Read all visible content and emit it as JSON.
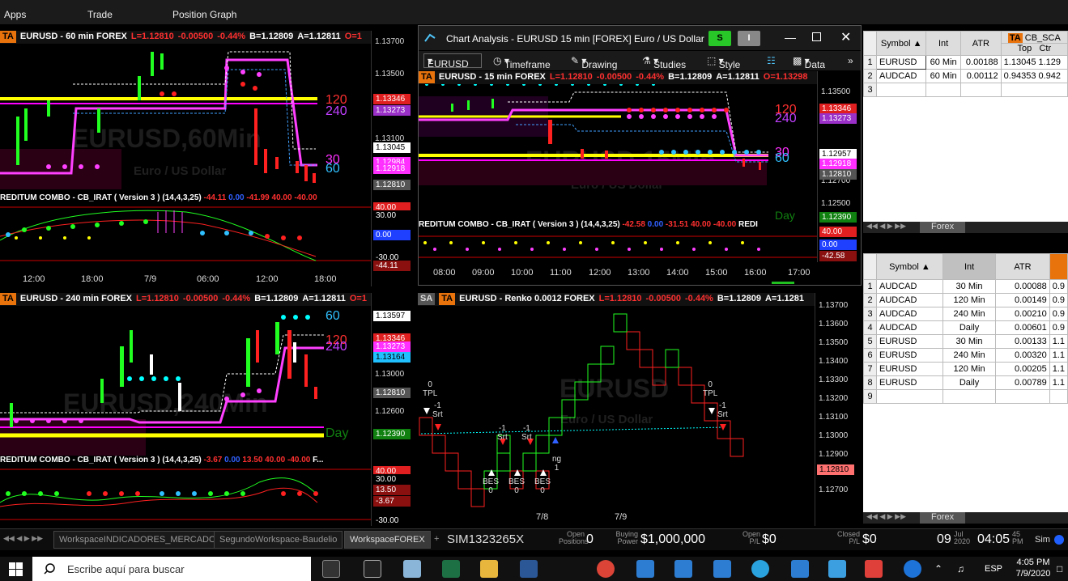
{
  "menu": {
    "apps": "Apps",
    "trade": "Trade",
    "position_graph": "Position Graph"
  },
  "p60": {
    "ta": "TA",
    "symbol": "EURUSD - 60 min  FOREX",
    "last": "L=1.12810",
    "chg": "-0.00500",
    "pct": "-0.44%",
    "bid": "B=1.12809",
    "ask": "A=1.12811",
    "open": "O=1",
    "watermark": "EURUSD,60Min",
    "watermark_sub": "Euro / US Dollar",
    "y_labels": [
      "1.13700",
      "1.13500",
      "1.13100"
    ],
    "tags": [
      {
        "v": "1.13346",
        "bg": "#e02020",
        "fg": "#fff"
      },
      {
        "v": "1.13273",
        "bg": "#9a30c8",
        "fg": "#fff"
      },
      {
        "v": "1.13045",
        "bg": "#fff",
        "fg": "#000"
      },
      {
        "v": "1.12984",
        "bg": "#ff30ff",
        "fg": "#fff"
      },
      {
        "v": "1.12918",
        "bg": "#ff30ff",
        "fg": "#fff"
      },
      {
        "v": "1.12810",
        "bg": "#555",
        "fg": "#fff"
      }
    ],
    "level_120": "120",
    "level_240": "240",
    "level_30": "30",
    "level_60": "60",
    "combo_title": "REDITUM COMBO - CB_IRAT ( Version 3 ) (14,4,3,25)",
    "combo_v1": "-44.11",
    "combo_v2": "0.00",
    "combo_v3": "-41.99",
    "combo_v4": "40.00",
    "combo_v5": "-40.00",
    "combo_tags": [
      {
        "v": "40.00",
        "bg": "#e02020"
      },
      {
        "v": "30.00",
        "bg": "#000"
      },
      {
        "v": "0.00",
        "bg": "#2040ff"
      },
      {
        "v": "-30.00",
        "bg": "#000"
      },
      {
        "v": "-44.11",
        "bg": "#8a1010"
      }
    ],
    "x_labels": [
      "12:00",
      "18:00",
      "7/9",
      "06:00",
      "12:00",
      "18:00"
    ]
  },
  "ca": {
    "title": "Chart Analysis - EURUSD 15 min [FOREX] Euro / US Dollar",
    "s_btn": "S",
    "i_btn": "I",
    "symbol_box": "EURUSD",
    "timeframe": "Timeframe",
    "drawing": "Drawing",
    "studies": "Studies",
    "style": "Style",
    "data": "Data",
    "ta": "TA",
    "symbol": "EURUSD - 15 min  FOREX",
    "last": "L=1.12810",
    "chg": "-0.00500",
    "pct": "-0.44%",
    "bid": "B=1.12809",
    "ask": "A=1.12811",
    "open": "O=1.13298",
    "watermark": "EURUSD,15Min",
    "watermark_sub": "Euro / US Dollar",
    "y_labels": [
      "1.13500",
      "1.12700",
      "1.12500"
    ],
    "tags": [
      {
        "v": "1.13346",
        "bg": "#e02020",
        "fg": "#fff"
      },
      {
        "v": "1.13273",
        "bg": "#9a30c8",
        "fg": "#fff"
      },
      {
        "v": "1.12957",
        "bg": "#fff",
        "fg": "#000"
      },
      {
        "v": "1.12918",
        "bg": "#ff30ff",
        "fg": "#fff"
      },
      {
        "v": "1.12810",
        "bg": "#555",
        "fg": "#fff"
      },
      {
        "v": "1.12390",
        "bg": "#108010",
        "fg": "#fff"
      }
    ],
    "level_120": "120",
    "level_240": "240",
    "level_30": "30",
    "level_60": "60",
    "level_day": "Day",
    "combo_title": "REDITUM COMBO - CB_IRAT ( Version 3 ) (14,4,3,25)",
    "combo_v1": "-42.58",
    "combo_v2": "0.00",
    "combo_v3": "-31.51",
    "combo_v4": "40.00",
    "combo_v5": "-40.00",
    "combo_tail": "REDI",
    "combo_tags": [
      {
        "v": "40.00",
        "bg": "#e02020"
      },
      {
        "v": "0.00",
        "bg": "#2040ff"
      },
      {
        "v": "-42.58",
        "bg": "#8a1010"
      }
    ],
    "x_labels": [
      "08:00",
      "09:00",
      "10:00",
      "11:00",
      "12:00",
      "13:00",
      "14:00",
      "15:00",
      "16:00",
      "17:00"
    ]
  },
  "p240": {
    "ta": "TA",
    "symbol": "EURUSD - 240 min  FOREX",
    "last": "L=1.12810",
    "chg": "-0.00500",
    "pct": "-0.44%",
    "bid": "B=1.12809",
    "ask": "A=1.12811",
    "open": "O=1",
    "watermark": "EURUSD,240Min",
    "y_labels": [
      "1.13000",
      "1.12600"
    ],
    "tags": [
      {
        "v": "1.13597",
        "bg": "#fff",
        "fg": "#000"
      },
      {
        "v": "1.13346",
        "bg": "#e02020",
        "fg": "#fff"
      },
      {
        "v": "1.13273",
        "bg": "#ff30ff",
        "fg": "#fff"
      },
      {
        "v": "1.13164",
        "bg": "#20c0ff",
        "fg": "#000"
      },
      {
        "v": "1.12810",
        "bg": "#555",
        "fg": "#fff"
      },
      {
        "v": "1.12390",
        "bg": "#108010",
        "fg": "#fff"
      }
    ],
    "level_60": "60",
    "level_120": "120",
    "level_240": "240",
    "level_day": "Day",
    "combo_title": "REDITUM COMBO - CB_IRAT ( Version 3 ) (14,4,3,25)",
    "combo_v1": "-3.67",
    "combo_v2": "0.00",
    "combo_v3": "13.50",
    "combo_v4": "40.00",
    "combo_v5": "-40.00",
    "combo_tail": "F...",
    "combo_tags": [
      {
        "v": "40.00",
        "bg": "#e02020"
      },
      {
        "v": "30.00",
        "bg": "#000"
      },
      {
        "v": "13.50",
        "bg": "#8a1010"
      },
      {
        "v": "-3.67",
        "bg": "#8a1010"
      },
      {
        "v": "-30.00",
        "bg": "#000"
      }
    ]
  },
  "renko": {
    "sa": "SA",
    "ta": "TA",
    "symbol": "EURUSD - Renko 0.0012  FOREX",
    "last": "L=1.12810",
    "chg": "-0.00500",
    "pct": "-0.44%",
    "bid": "B=1.12809",
    "ask": "A=1.1281",
    "watermark": "EURUSD",
    "watermark_sub": "Euro / US Dollar",
    "y_labels": [
      "1.13700",
      "1.13600",
      "1.13500",
      "1.13400",
      "1.13300",
      "1.13200",
      "1.13100",
      "1.13000",
      "1.12900",
      "1.12700"
    ],
    "last_tag": "1.12810",
    "x_labels": [
      "7/8",
      "7/9"
    ],
    "annotations": {
      "tpl": "TPL",
      "zero": "0",
      "srt": "Srt",
      "minus1": "-1",
      "bes": "BES",
      "ng": "ng",
      "one": "1"
    }
  },
  "grid_top": {
    "headers": [
      "Symbol",
      "Int",
      "ATR",
      "CB_SCA"
    ],
    "sub_headers": [
      "Top",
      "Ctr"
    ],
    "ta": "TA",
    "rows": [
      {
        "n": "1",
        "sym": "EURUSD",
        "int": "60 Min",
        "atr": "0.00188",
        "top": "1.13045",
        "ctr": "1.129"
      },
      {
        "n": "2",
        "sym": "AUDCAD",
        "int": "60 Min",
        "atr": "0.00112",
        "top": "0.94353",
        "ctr": "0.942"
      },
      {
        "n": "3",
        "sym": "",
        "int": "",
        "atr": "",
        "top": "",
        "ctr": ""
      }
    ],
    "tab": "Forex"
  },
  "grid_bottom": {
    "headers": [
      "Symbol",
      "Int",
      "ATR"
    ],
    "rows": [
      {
        "n": "1",
        "sym": "AUDCAD",
        "int": "30 Min",
        "atr": "0.00088",
        "x": "0.9"
      },
      {
        "n": "2",
        "sym": "AUDCAD",
        "int": "120 Min",
        "atr": "0.00149",
        "x": "0.9"
      },
      {
        "n": "3",
        "sym": "AUDCAD",
        "int": "240 Min",
        "atr": "0.00210",
        "x": "0.9"
      },
      {
        "n": "4",
        "sym": "AUDCAD",
        "int": "Daily",
        "atr": "0.00601",
        "x": "0.9"
      },
      {
        "n": "5",
        "sym": "EURUSD",
        "int": "30 Min",
        "atr": "0.00133",
        "x": "1.1"
      },
      {
        "n": "6",
        "sym": "EURUSD",
        "int": "240 Min",
        "atr": "0.00320",
        "x": "1.1"
      },
      {
        "n": "7",
        "sym": "EURUSD",
        "int": "120 Min",
        "atr": "0.00205",
        "x": "1.1"
      },
      {
        "n": "8",
        "sym": "EURUSD",
        "int": "Daily",
        "atr": "0.00789",
        "x": "1.1"
      },
      {
        "n": "9",
        "sym": "",
        "int": "",
        "atr": "",
        "x": ""
      }
    ],
    "tab": "Forex"
  },
  "status": {
    "tabs": [
      "WorkspaceINDICADORES_MERCADO",
      "SegundoWorkspace-Baudelio",
      "WorkspaceFOREX"
    ],
    "plus": "+",
    "account": "SIM1323265X",
    "open_positions_l1": "Open",
    "open_positions_l2": "Positions",
    "open_positions": "0",
    "buying_power_l1": "Buying",
    "buying_power_l2": "Power",
    "buying_power": "$1,000,000",
    "open_pl_l1": "Open",
    "open_pl_l2": "P/L",
    "open_pl": "$0",
    "closed_pl_l1": "Closed",
    "closed_pl_l2": "P/L",
    "closed_pl": "$0",
    "day": "09",
    "month": "Jul",
    "year": "2020",
    "time": "04:05",
    "sec": "45",
    "ampm": "PM",
    "sim": "Sim"
  },
  "taskbar": {
    "search": "Escribe aquí para buscar",
    "lang": "ESP",
    "time": "4:05 PM",
    "date": "7/9/2020"
  }
}
